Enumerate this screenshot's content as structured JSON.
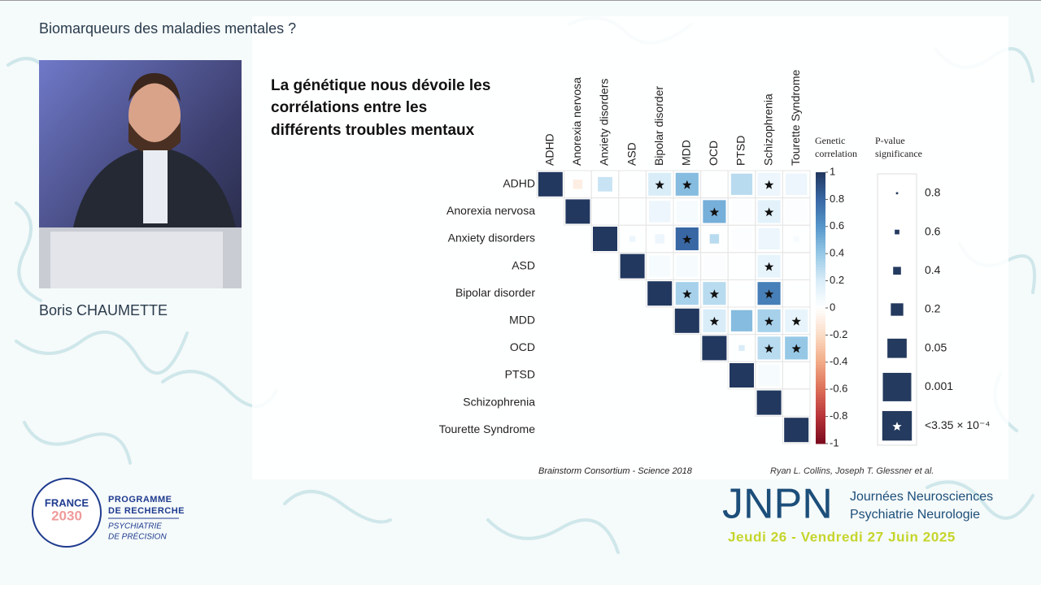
{
  "header": {
    "title": "Biomarqueurs des maladies mentales ?"
  },
  "speaker": {
    "name": "Boris CHAUMETTE"
  },
  "slide": {
    "title_lines": [
      "La génétique nous dévoile les",
      "corrélations entre les",
      "différents troubles mentaux"
    ],
    "source": "Brainstorm Consortium - Science 2018",
    "authors": "Ryan L. Collins, Joseph T. Glessner et al."
  },
  "chart_data": {
    "type": "heatmap",
    "categories": [
      "ADHD",
      "Anorexia nervosa",
      "Anxiety disorders",
      "ASD",
      "Bipolar disorder",
      "MDD",
      "OCD",
      "PTSD",
      "Schizophrenia",
      "Tourette Syndrome"
    ],
    "values": [
      [
        1,
        -0.1,
        0.25,
        null,
        0.2,
        0.45,
        null,
        0.3,
        0.1,
        0.1
      ],
      [
        null,
        1,
        null,
        null,
        0.1,
        0.05,
        0.5,
        0.02,
        0.15,
        0.02
      ],
      [
        null,
        null,
        1,
        0.1,
        0.1,
        0.8,
        0.3,
        0.02,
        0.1,
        0.05
      ],
      [
        null,
        null,
        null,
        1,
        0.05,
        0.05,
        0.02,
        null,
        0.12,
        null
      ],
      [
        null,
        null,
        null,
        null,
        1,
        0.35,
        0.3,
        null,
        0.7,
        null
      ],
      [
        null,
        null,
        null,
        null,
        null,
        1,
        0.2,
        0.45,
        0.35,
        0.12
      ],
      [
        null,
        null,
        null,
        null,
        null,
        null,
        1,
        0.2,
        0.3,
        0.4
      ],
      [
        null,
        null,
        null,
        null,
        null,
        null,
        null,
        1,
        0.05,
        -0.02
      ],
      [
        null,
        null,
        null,
        null,
        null,
        null,
        null,
        null,
        1,
        null
      ],
      [
        null,
        null,
        null,
        null,
        null,
        null,
        null,
        null,
        null,
        1
      ]
    ],
    "p_values": [
      [
        null,
        0.2,
        0.05,
        null,
        0.0001,
        0.0001,
        null,
        0.001,
        0.0001,
        0.001
      ],
      [
        null,
        null,
        null,
        null,
        0.001,
        0.001,
        0.0001,
        0.001,
        0.0001,
        0.001
      ],
      [
        null,
        null,
        null,
        0.4,
        0.2,
        0.0001,
        0.2,
        0.001,
        0.001,
        0.4
      ],
      [
        null,
        null,
        null,
        null,
        0.001,
        0.001,
        0.001,
        null,
        0.0001,
        null
      ],
      [
        null,
        null,
        null,
        null,
        null,
        0.0001,
        0.0001,
        null,
        0.0001,
        null
      ],
      [
        null,
        null,
        null,
        null,
        null,
        null,
        0.0001,
        0.001,
        0.0001,
        0.0001
      ],
      [
        null,
        null,
        null,
        null,
        null,
        null,
        null,
        0.4,
        0.0001,
        0.0001
      ],
      [
        null,
        null,
        null,
        null,
        null,
        null,
        null,
        null,
        0.001,
        0.8
      ],
      [
        null,
        null,
        null,
        null,
        null,
        null,
        null,
        null,
        null,
        null
      ],
      [
        null,
        null,
        null,
        null,
        null,
        null,
        null,
        null,
        null,
        null
      ]
    ],
    "colorbar_title": [
      "Genetic",
      "correlation"
    ],
    "zlim": [
      -1,
      1
    ],
    "zticks": [
      1,
      0.8,
      0.6,
      0.4,
      0.2,
      0,
      -0.2,
      -0.4,
      -0.6,
      -0.8,
      -1
    ],
    "colorscale": [
      [
        -1,
        "#7a0a1c"
      ],
      [
        -0.8,
        "#b8343a"
      ],
      [
        -0.6,
        "#dc6f58"
      ],
      [
        -0.4,
        "#f2ab86"
      ],
      [
        -0.2,
        "#fbdcc6"
      ],
      [
        0,
        "#ffffff"
      ],
      [
        0.2,
        "#d9edf8"
      ],
      [
        0.4,
        "#96c8e6"
      ],
      [
        0.6,
        "#5596cb"
      ],
      [
        0.8,
        "#3867a4"
      ],
      [
        1,
        "#22385f"
      ]
    ],
    "size_legend_title": [
      "P-value",
      "significance"
    ],
    "size_legend": [
      0.8,
      0.6,
      0.4,
      0.2,
      0.05,
      0.001,
      {
        "value": 0.000335,
        "label": "<3.35 × 10⁻⁴"
      }
    ]
  },
  "footer": {
    "france": [
      "FRANCE",
      "2030"
    ],
    "programme": [
      "PROGRAMME",
      "DE RECHERCHE"
    ],
    "programme_sub": [
      "PSYCHIATRIE",
      "DE PRÉCISION"
    ],
    "jnpn": "JNPN",
    "jnpn_lines": [
      "Journées Neurosciences",
      "Psychiatrie Neurologie"
    ],
    "dates": "Jeudi 26 - Vendredi 27 Juin 2025"
  }
}
